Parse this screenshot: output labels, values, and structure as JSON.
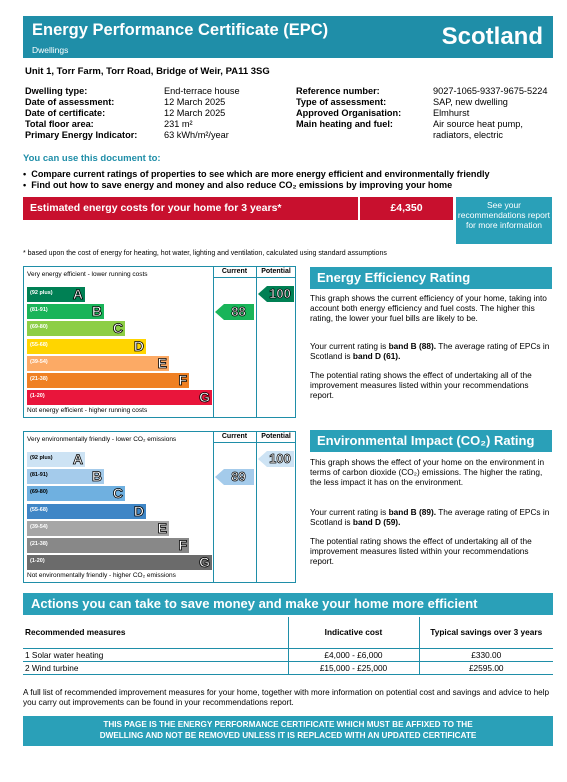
{
  "header": {
    "title": "Energy Performance Certificate (EPC)",
    "subtitle": "Dwellings",
    "country": "Scotland"
  },
  "address": "Unit 1, Torr Farm,  Torr Road, Bridge of Weir, PA11 3SG",
  "details_left": [
    {
      "label": "Dwelling type:",
      "value": "End-terrace house"
    },
    {
      "label": "Date of assessment:",
      "value": "12 March 2025"
    },
    {
      "label": "Date of certificate:",
      "value": "12 March 2025"
    },
    {
      "label": "Total floor area:",
      "value": "231 m²"
    },
    {
      "label": "Primary Energy Indicator:",
      "value": "63 kWh/m²/year"
    }
  ],
  "details_right": [
    {
      "label": "Reference number:",
      "value": "9027-1065-9337-9675-5224"
    },
    {
      "label": "Type of assessment:",
      "value": "SAP, new dwelling"
    },
    {
      "label": "Approved Organisation:",
      "value": "Elmhurst"
    },
    {
      "label": "Main heating and fuel:",
      "value": "Air source heat pump,",
      "value2": "radiators, electric"
    }
  ],
  "use": {
    "heading": "You can use this document to:",
    "bullets": [
      "Compare current ratings of properties to see which are more energy efficient and environmentally friendly",
      "Find out how to save energy and money and also reduce CO₂ emissions by improving your home"
    ]
  },
  "costs": {
    "label": "Estimated energy costs for your home for 3 years*",
    "amount": "£4,350",
    "see_text": "See your recommendations report for more information",
    "footnote": "* based upon the cost of energy for heating, hot water, lighting and ventilation, calculated using standard assumptions"
  },
  "ee_chart": {
    "top_label": "Very energy efficient - lower running costs",
    "bottom_label": "Not energy efficient - higher running costs",
    "current_header": "Current",
    "potential_header": "Potential",
    "bands": [
      {
        "range": "(92 plus)",
        "letter": "A",
        "color": "#008054"
      },
      {
        "range": "(81-91)",
        "letter": "B",
        "color": "#19b459"
      },
      {
        "range": "(69-80)",
        "letter": "C",
        "color": "#8dce46"
      },
      {
        "range": "(55-68)",
        "letter": "D",
        "color": "#ffd500"
      },
      {
        "range": "(39-54)",
        "letter": "E",
        "color": "#fcaa65"
      },
      {
        "range": "(21-38)",
        "letter": "F",
        "color": "#ef8023"
      },
      {
        "range": "(1-20)",
        "letter": "G",
        "color": "#e9153b"
      }
    ],
    "current": 88,
    "potential": 100
  },
  "ee_text": {
    "title": "Energy Efficiency Rating",
    "p1": "This graph shows the current efficiency of your home, taking into account both energy efficiency and fuel costs. The higher this rating, the lower your fuel bills are likely to be.",
    "p2a": "Your current rating is ",
    "p2b": "band B (88).",
    "p2c": " The average rating of EPCs in Scotland is ",
    "p2d": "band D (61).",
    "p3": "The potential rating shows the effect of undertaking all of the improvement measures listed within your recommendations report."
  },
  "ei_chart": {
    "top_label": "Very environmentally friendly - lower CO₂ emissions",
    "bottom_label": "Not environmentally friendly - higher CO₂ emissions",
    "current_header": "Current",
    "potential_header": "Potential",
    "bands": [
      {
        "range": "(92 plus)",
        "letter": "A",
        "color": "#cde3f4"
      },
      {
        "range": "(81-91)",
        "letter": "B",
        "color": "#a4cbeb"
      },
      {
        "range": "(69-80)",
        "letter": "C",
        "color": "#6fb0e0"
      },
      {
        "range": "(55-68)",
        "letter": "D",
        "color": "#3f86c6"
      },
      {
        "range": "(39-54)",
        "letter": "E",
        "color": "#a6a6a6"
      },
      {
        "range": "(21-38)",
        "letter": "F",
        "color": "#888888"
      },
      {
        "range": "(1-20)",
        "letter": "G",
        "color": "#6b6b6b"
      }
    ],
    "current": 89,
    "potential": 100
  },
  "ei_text": {
    "title": "Environmental Impact (CO₂) Rating",
    "p1": "This graph shows the effect of your home on the environment in terms of carbon dioxide (CO₂) emissions. The higher the rating, the less impact it has on the environment.",
    "p2a": "Your current rating is ",
    "p2b": "band B (89).",
    "p2c": " The average rating of EPCs in Scotland is ",
    "p2d": "band D (59).",
    "p3": "The potential rating shows the effect of undertaking all of the improvement measures listed within your recommendations report."
  },
  "actions": {
    "title": "Actions you can take to save money and make your home more efficient",
    "col1": "Recommended measures",
    "col2": "Indicative cost",
    "col3": "Typical savings over 3 years",
    "rows": [
      {
        "measure": "1 Solar water heating",
        "cost": "£4,000 - £6,000",
        "saving": "£330.00"
      },
      {
        "measure": "2 Wind turbine",
        "cost": "£15,000 - £25,000",
        "saving": "£2595.00"
      }
    ],
    "full_list": "A full list of recommended improvement measures for your home, together with more information on potential cost and savings and advice to help you carry out improvements can be found in your recommendations report."
  },
  "footer": {
    "line1": "THIS PAGE IS THE ENERGY PERFORMANCE CERTIFICATE WHICH MUST BE AFFIXED TO THE",
    "line2": "DWELLING AND NOT BE REMOVED UNLESS IT IS REPLACED WITH AN UPDATED CERTIFICATE"
  },
  "colors": {
    "accent": "#1f8ea8",
    "accent_light": "#2aa0b8",
    "cost_red": "#c8102e",
    "ee_arrow": "#19b459",
    "ee_potential_arrow": "#008054",
    "ei_arrow": "#a4cbeb",
    "ei_potential_arrow": "#cde3f4"
  }
}
